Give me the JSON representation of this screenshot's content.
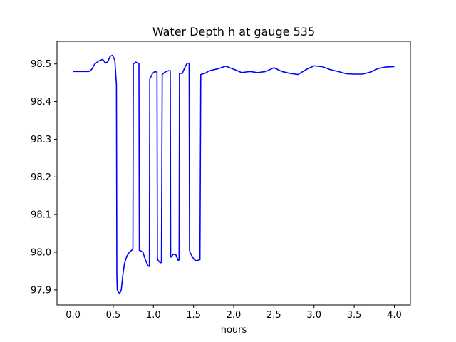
{
  "chart_data": {
    "type": "line",
    "title": "Water Depth h at gauge 535",
    "xlabel": "hours",
    "ylabel": "",
    "xlim": [
      -0.2,
      4.2
    ],
    "ylim": [
      97.86,
      98.56
    ],
    "x_ticks": [
      0.0,
      0.5,
      1.0,
      1.5,
      2.0,
      2.5,
      3.0,
      3.5,
      4.0
    ],
    "x_tick_labels": [
      "0.0",
      "0.5",
      "1.0",
      "1.5",
      "2.0",
      "2.5",
      "3.0",
      "3.5",
      "4.0"
    ],
    "y_ticks": [
      97.9,
      98.0,
      98.1,
      98.2,
      98.3,
      98.4,
      98.5
    ],
    "y_tick_labels": [
      "97.9",
      "98.0",
      "98.1",
      "98.2",
      "98.3",
      "98.4",
      "98.5"
    ],
    "grid": false,
    "series": [
      {
        "color": "#0000ff",
        "x": [
          0.0,
          0.1,
          0.2,
          0.23,
          0.27,
          0.32,
          0.37,
          0.4,
          0.43,
          0.46,
          0.49,
          0.52,
          0.54,
          0.545,
          0.55,
          0.58,
          0.6,
          0.62,
          0.64,
          0.67,
          0.7,
          0.73,
          0.745,
          0.75,
          0.78,
          0.8,
          0.82,
          0.825,
          0.83,
          0.87,
          0.9,
          0.93,
          0.95,
          0.955,
          0.96,
          0.99,
          1.02,
          1.045,
          1.05,
          1.055,
          1.07,
          1.09,
          1.1,
          1.11,
          1.13,
          1.16,
          1.19,
          1.21,
          1.215,
          1.22,
          1.25,
          1.28,
          1.31,
          1.32,
          1.325,
          1.33,
          1.36,
          1.39,
          1.42,
          1.445,
          1.45,
          1.455,
          1.48,
          1.51,
          1.54,
          1.57,
          1.58,
          1.59,
          1.64,
          1.7,
          1.8,
          1.9,
          2.0,
          2.1,
          2.2,
          2.3,
          2.4,
          2.5,
          2.6,
          2.7,
          2.8,
          2.9,
          3.0,
          3.1,
          3.2,
          3.3,
          3.4,
          3.5,
          3.6,
          3.7,
          3.8,
          3.9,
          4.0
        ],
        "values": [
          98.48,
          98.48,
          98.48,
          98.485,
          98.5,
          98.508,
          98.512,
          98.503,
          98.505,
          98.52,
          98.523,
          98.51,
          98.445,
          97.94,
          97.9,
          97.89,
          97.9,
          97.94,
          97.97,
          97.99,
          98.0,
          98.005,
          98.01,
          98.5,
          98.505,
          98.503,
          98.501,
          98.005,
          98.005,
          98.0,
          97.98,
          97.965,
          97.962,
          98.46,
          98.462,
          98.475,
          98.48,
          98.478,
          97.985,
          97.98,
          97.975,
          97.972,
          97.973,
          98.472,
          98.476,
          98.48,
          98.482,
          98.482,
          97.988,
          97.987,
          97.995,
          97.993,
          97.978,
          97.98,
          98.475,
          98.475,
          98.475,
          98.49,
          98.502,
          98.502,
          98.005,
          98.0,
          97.99,
          97.98,
          97.977,
          97.98,
          97.98,
          98.472,
          98.475,
          98.482,
          98.487,
          98.494,
          98.486,
          98.477,
          98.48,
          98.477,
          98.48,
          98.49,
          98.48,
          98.475,
          98.472,
          98.485,
          98.495,
          98.493,
          98.485,
          98.48,
          98.474,
          98.473,
          98.473,
          98.478,
          98.488,
          98.492,
          98.493
        ]
      }
    ]
  }
}
